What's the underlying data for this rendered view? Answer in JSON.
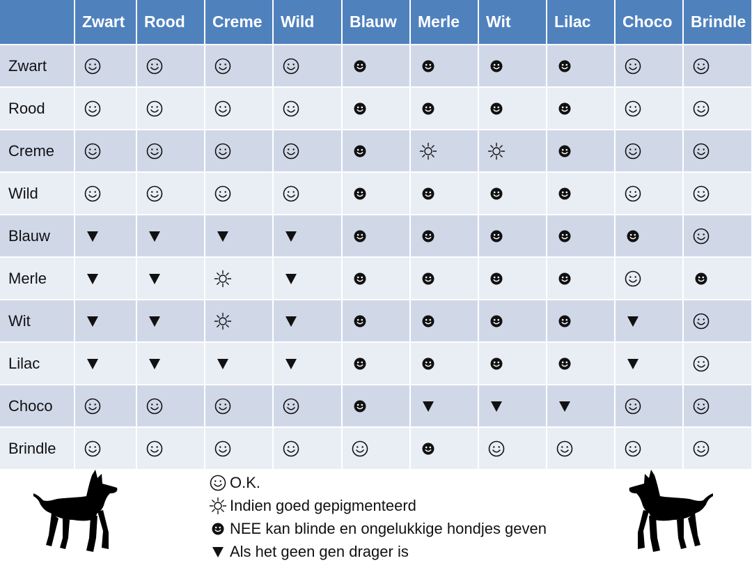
{
  "table": {
    "columns": [
      "Zwart",
      "Rood",
      "Creme",
      "Wild",
      "Blauw",
      "Merle",
      "Wit",
      "Lilac",
      "Choco",
      "Brindle"
    ],
    "rows": [
      {
        "label": "Zwart",
        "cells": [
          "ok",
          "ok",
          "ok",
          "ok",
          "nee",
          "nee",
          "nee",
          "nee",
          "ok",
          "ok"
        ]
      },
      {
        "label": "Rood",
        "cells": [
          "ok",
          "ok",
          "ok",
          "ok",
          "nee",
          "nee",
          "nee",
          "nee",
          "ok",
          "ok"
        ]
      },
      {
        "label": "Creme",
        "cells": [
          "ok",
          "ok",
          "ok",
          "ok",
          "nee",
          "sun",
          "sun",
          "nee",
          "ok",
          "ok"
        ]
      },
      {
        "label": "Wild",
        "cells": [
          "ok",
          "ok",
          "ok",
          "ok",
          "nee",
          "nee",
          "nee",
          "nee",
          "ok",
          "ok"
        ]
      },
      {
        "label": "Blauw",
        "cells": [
          "tri",
          "tri",
          "tri",
          "tri",
          "nee",
          "nee",
          "nee",
          "nee",
          "nee",
          "ok"
        ]
      },
      {
        "label": "Merle",
        "cells": [
          "tri",
          "tri",
          "sun",
          "tri",
          "nee",
          "nee",
          "nee",
          "nee",
          "ok",
          "nee"
        ]
      },
      {
        "label": "Wit",
        "cells": [
          "tri",
          "tri",
          "sun",
          "tri",
          "nee",
          "nee",
          "nee",
          "nee",
          "tri",
          "ok"
        ]
      },
      {
        "label": "Lilac",
        "cells": [
          "tri",
          "tri",
          "tri",
          "tri",
          "nee",
          "nee",
          "nee",
          "nee",
          "tri",
          "ok"
        ]
      },
      {
        "label": "Choco",
        "cells": [
          "ok",
          "ok",
          "ok",
          "ok",
          "nee",
          "tri",
          "tri",
          "tri",
          "ok",
          "ok"
        ]
      },
      {
        "label": "Brindle",
        "cells": [
          "ok",
          "ok",
          "ok",
          "ok",
          "ok",
          "nee",
          "ok",
          "ok",
          "ok",
          "ok"
        ]
      }
    ]
  },
  "symbols": {
    "ok": "smiley-outline-icon",
    "sun": "sun-icon",
    "nee": "smiley-filled-icon",
    "tri": "triangle-down-icon"
  },
  "legend": [
    {
      "symbol": "ok",
      "text": "O.K."
    },
    {
      "symbol": "sun",
      "text": "Indien goed gepigmenteerd"
    },
    {
      "symbol": "nee",
      "text": "NEE kan blinde en ongelukkige hondjes geven"
    },
    {
      "symbol": "tri",
      "text": "Als het geen gen drager is"
    }
  ],
  "colors": {
    "header_bg": "#4f81bd",
    "row_dark": "#d0d8e8",
    "row_light": "#e9edf4"
  }
}
